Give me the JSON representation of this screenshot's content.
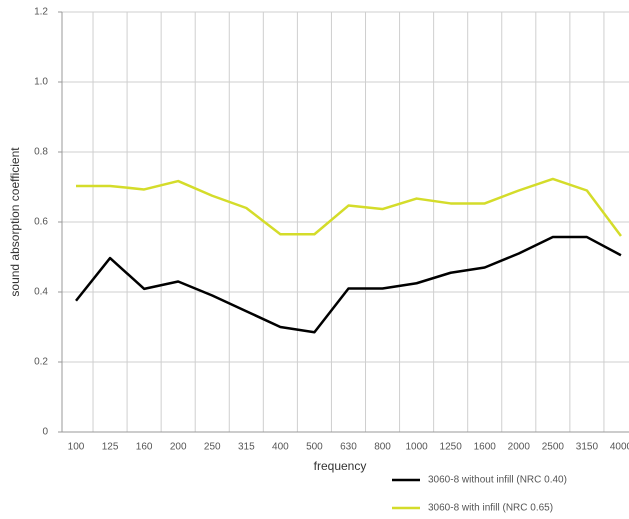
{
  "chart_data": {
    "type": "line",
    "categories": [
      "100",
      "125",
      "160",
      "200",
      "250",
      "315",
      "400",
      "500",
      "630",
      "800",
      "1000",
      "1250",
      "1600",
      "2000",
      "2500",
      "3150",
      "4000"
    ],
    "series": [
      {
        "name": "3060-8 without infill (NRC 0.40)",
        "color": "#000000",
        "values": [
          0.375,
          0.497,
          0.409,
          0.43,
          0.39,
          0.345,
          0.3,
          0.285,
          0.41,
          0.41,
          0.425,
          0.455,
          0.47,
          0.51,
          0.557,
          0.557,
          0.505
        ]
      },
      {
        "name": "3060-8 with infill (NRC 0.65)",
        "color": "#d4dc2a",
        "values": [
          0.703,
          0.703,
          0.693,
          0.717,
          0.675,
          0.64,
          0.565,
          0.565,
          0.647,
          0.637,
          0.667,
          0.653,
          0.653,
          0.69,
          0.723,
          0.69,
          0.56
        ]
      }
    ],
    "x_label": "frequency",
    "y_label": "sound absorption coefficient",
    "ylim": [
      0,
      1.2
    ],
    "yticks": [
      0,
      0.2,
      0.4,
      0.6,
      0.8,
      {
        "value": 1,
        "label": "1.0"
      },
      1.2
    ],
    "grid": true
  }
}
